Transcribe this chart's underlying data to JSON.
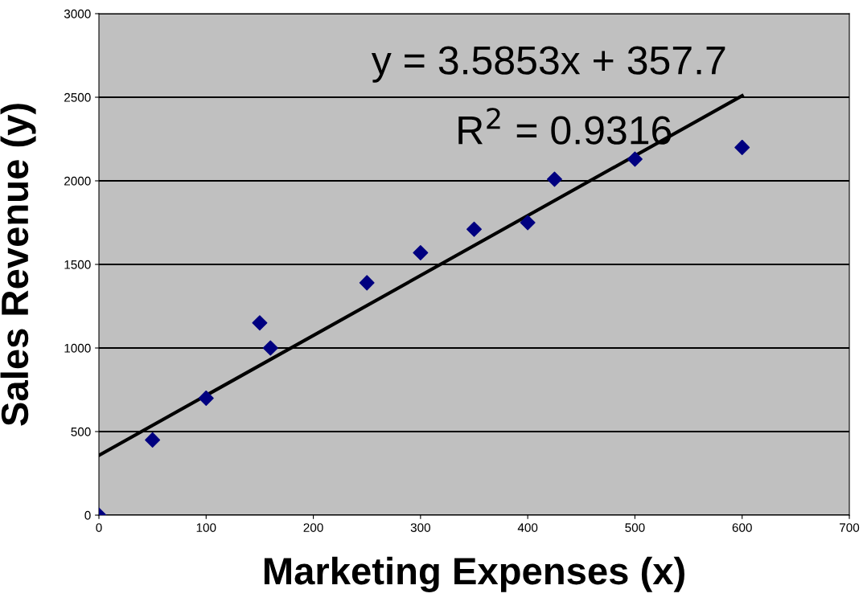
{
  "chart_data": {
    "type": "scatter",
    "xlabel": "Marketing Expenses (x)",
    "ylabel": "Sales Revenue (y)",
    "x": [
      0,
      50,
      100,
      150,
      160,
      250,
      300,
      350,
      400,
      425,
      500,
      600
    ],
    "series": [
      {
        "type": "scatter",
        "color": "#000080",
        "marker": "diamond",
        "values": [
          0,
          450,
          700,
          1150,
          1000,
          1390,
          1570,
          1710,
          1750,
          2010,
          2130,
          2200
        ]
      },
      {
        "type": "line",
        "color": "#000000",
        "marker": "none",
        "line_style": "solid",
        "x": [
          0,
          600
        ],
        "values": [
          358,
          2509
        ]
      }
    ],
    "annotations": [
      "y = 3.5853x + 357.7",
      "R$^{2}$ = 0.9316"
    ],
    "xlim": [
      0,
      700
    ],
    "xticks": [
      0,
      100,
      200,
      300,
      400,
      500,
      600,
      700
    ],
    "ylim": [
      0,
      3000
    ],
    "yticks": [
      0,
      500,
      1000,
      1500,
      2000,
      2500,
      3000
    ],
    "grid": "y",
    "legend": false
  }
}
